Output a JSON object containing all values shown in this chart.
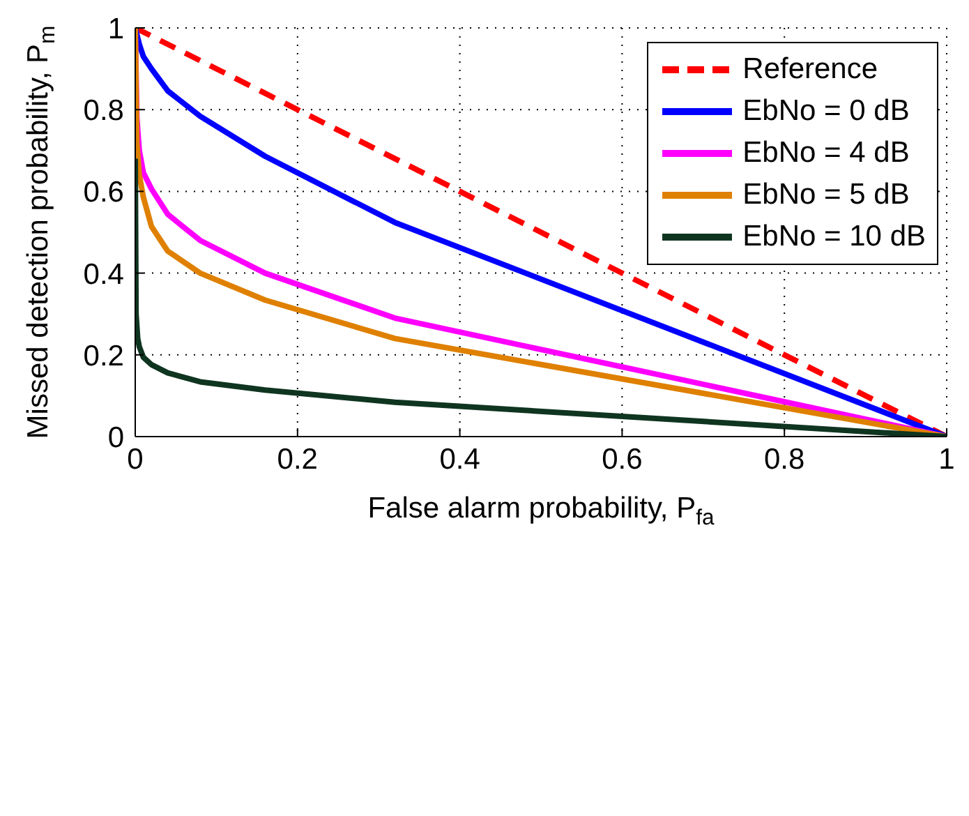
{
  "chart_data": {
    "type": "line",
    "xlabel": "False alarm probability, P$_{fa}$",
    "ylabel": "Missed detection probability, P$_{m}$",
    "xlim": [
      0,
      1
    ],
    "ylim": [
      0,
      1
    ],
    "xticks": [
      0,
      0.2,
      0.4,
      0.6,
      0.8,
      1
    ],
    "yticks": [
      0,
      0.2,
      0.4,
      0.6,
      0.8,
      1
    ],
    "grid": true,
    "legend": "top right",
    "marker": "none",
    "series": [
      {
        "name": "Reference",
        "color": "#ff0000",
        "line_style": "dashed",
        "x": [
          0,
          1
        ],
        "values": [
          1,
          0
        ]
      },
      {
        "name": "EbNo = 0 dB",
        "color": "#0000ff",
        "x": [
          0,
          0.005,
          0.01,
          0.02,
          0.04,
          0.08,
          0.16,
          0.32,
          1
        ],
        "values": [
          1,
          0.96,
          0.93,
          0.9,
          0.846,
          0.784,
          0.686,
          0.524,
          0
        ]
      },
      {
        "name": "EbNo = 4 dB",
        "color": "#ff00ff",
        "x": [
          0,
          0.002,
          0.005,
          0.01,
          0.02,
          0.04,
          0.08,
          0.16,
          0.32,
          1
        ],
        "values": [
          1,
          0.78,
          0.7,
          0.646,
          0.606,
          0.544,
          0.48,
          0.4,
          0.29,
          0
        ]
      },
      {
        "name": "EbNo = 5 dB",
        "color": "#df8000",
        "x": [
          0,
          0.002,
          0.005,
          0.01,
          0.02,
          0.04,
          0.08,
          0.16,
          0.32,
          1
        ],
        "values": [
          1,
          0.72,
          0.64,
          0.586,
          0.514,
          0.454,
          0.4,
          0.334,
          0.24,
          0
        ]
      },
      {
        "name": "EbNo = 10 dB",
        "color": "#0f3520",
        "x": [
          0,
          0.001,
          0.003,
          0.005,
          0.01,
          0.02,
          0.04,
          0.08,
          0.16,
          0.32,
          1
        ],
        "values": [
          0.68,
          0.3,
          0.24,
          0.22,
          0.194,
          0.176,
          0.156,
          0.134,
          0.114,
          0.084,
          0
        ]
      }
    ]
  }
}
